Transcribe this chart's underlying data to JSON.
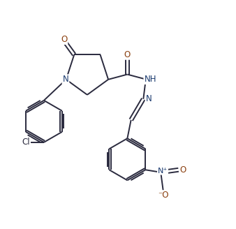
{
  "bg_color": "#ffffff",
  "bond_color": "#2a2a3e",
  "atom_color_N": "#1a3a6e",
  "atom_color_O": "#8B4010",
  "line_width": 1.4,
  "font_size_atom": 8.5,
  "figsize": [
    3.38,
    3.28
  ],
  "dpi": 100,
  "xlim": [
    0.0,
    9.5
  ],
  "ylim": [
    0.0,
    9.0
  ]
}
